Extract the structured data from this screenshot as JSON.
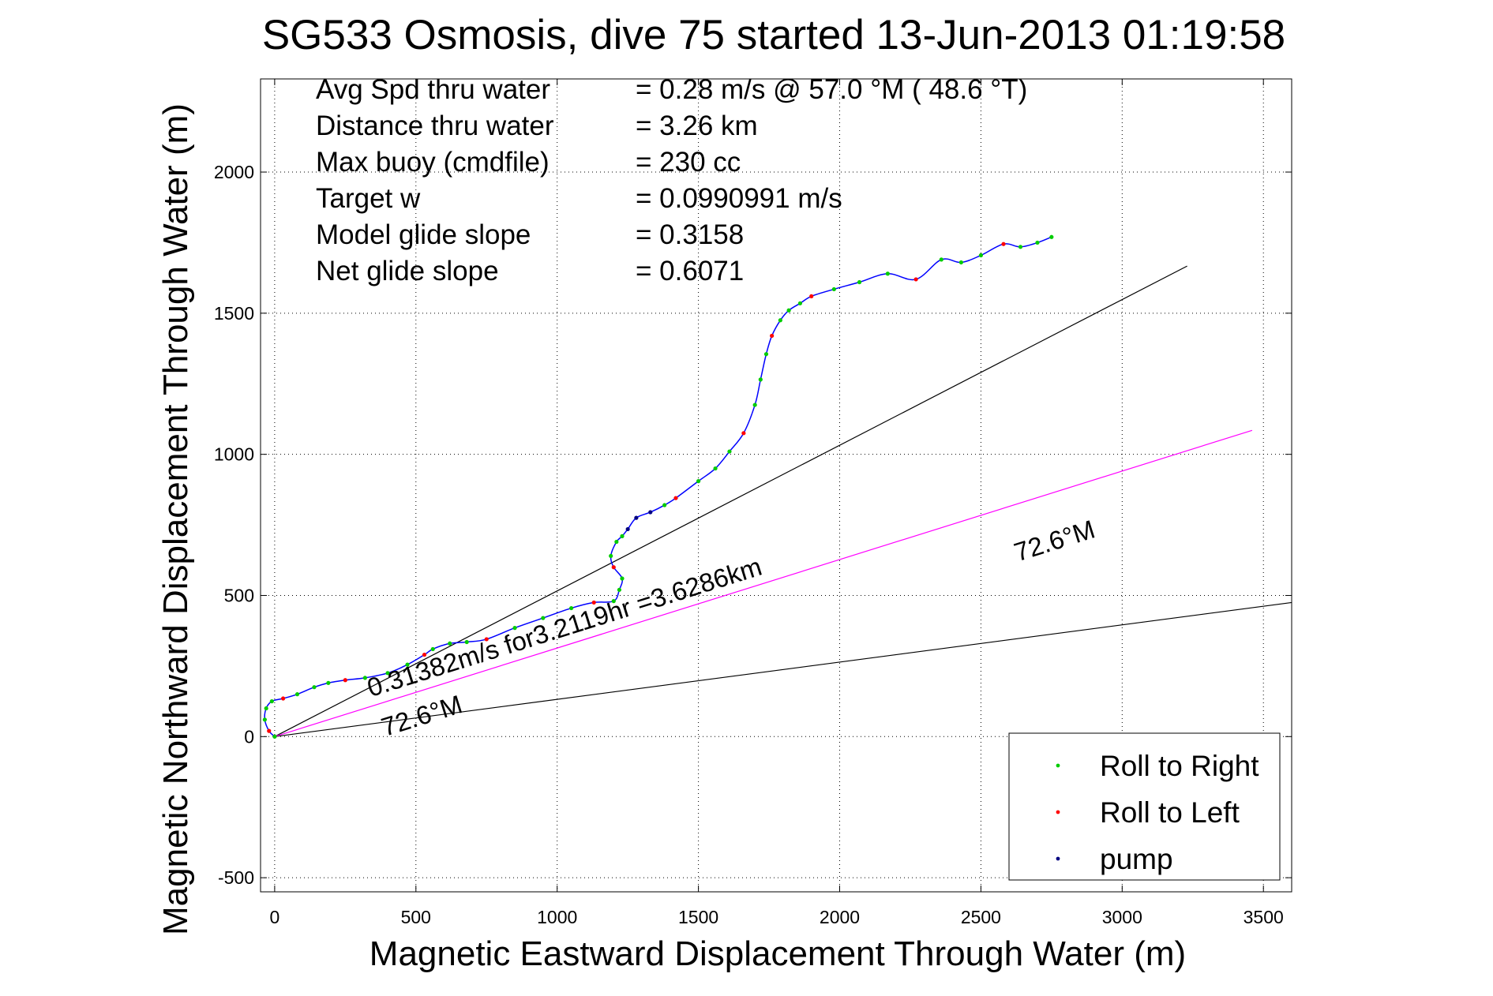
{
  "chart_data": {
    "type": "line",
    "title": "SG533 Osmosis, dive 75 started 13-Jun-2013 01:19:58",
    "xlabel": "Magnetic Eastward Displacement Through Water (m)",
    "ylabel": "Magnetic Northward Displacement Through Water (m)",
    "xlim": [
      -50,
      3600
    ],
    "ylim": [
      -550,
      2330
    ],
    "xticks": [
      0,
      500,
      1000,
      1500,
      2000,
      2500,
      3000,
      3500
    ],
    "yticks": [
      -500,
      0,
      500,
      1000,
      1500,
      2000
    ],
    "grid": true,
    "legend_position": "bottom-right",
    "info_lines": [
      {
        "label": "Avg Spd thru water",
        "value": "=  0.28 m/s @  57.0 °M ( 48.6 °T)"
      },
      {
        "label": "Distance thru water",
        "value": "=  3.26 km"
      },
      {
        "label": "Max buoy (cmdfile)",
        "value": "= 230 cc"
      },
      {
        "label": "Target w",
        "value": "= 0.0990991 m/s"
      },
      {
        "label": "Model glide slope",
        "value": "= 0.3158"
      },
      {
        "label": "Net glide slope",
        "value": "= 0.6071"
      }
    ],
    "annotations": [
      {
        "text": "0.31382m/s for3.2119hr =3.6286km",
        "x": 340,
        "y": 140,
        "angle_deg": 17.4
      },
      {
        "text": "72.6°M",
        "x": 390,
        "y": 0,
        "angle_deg": 17.4
      },
      {
        "text": "72.6°M",
        "x": 2630,
        "y": 620,
        "angle_deg": 17.4
      }
    ],
    "reference_lines": [
      {
        "name": "upper glide-slope bound",
        "color": "#000000",
        "x": [
          0,
          3230
        ],
        "y": [
          0,
          1667
        ]
      },
      {
        "name": "lower glide-slope bound",
        "color": "#000000",
        "x": [
          0,
          3600
        ],
        "y": [
          0,
          475
        ]
      },
      {
        "name": "72.6°M course",
        "color": "#ff00ff",
        "x": [
          0,
          3460
        ],
        "y": [
          0,
          1085
        ]
      }
    ],
    "track": {
      "name": "dive track",
      "color": "#0000ff",
      "x": [
        0,
        -20,
        -35,
        -30,
        -10,
        30,
        80,
        140,
        190,
        250,
        320,
        400,
        470,
        530,
        560,
        620,
        680,
        750,
        850,
        950,
        1050,
        1130,
        1200,
        1220,
        1230,
        1200,
        1190,
        1210,
        1230,
        1250,
        1280,
        1330,
        1380,
        1420,
        1500,
        1560,
        1610,
        1660,
        1700,
        1720,
        1740,
        1760,
        1790,
        1820,
        1860,
        1900,
        1980,
        2070,
        2170,
        2270,
        2360,
        2430,
        2500,
        2580,
        2640,
        2700,
        2750
      ],
      "y": [
        0,
        20,
        60,
        100,
        125,
        135,
        150,
        175,
        190,
        200,
        208,
        225,
        255,
        290,
        310,
        330,
        335,
        345,
        385,
        420,
        455,
        475,
        480,
        520,
        560,
        600,
        640,
        690,
        710,
        735,
        775,
        795,
        820,
        845,
        905,
        950,
        1010,
        1075,
        1175,
        1265,
        1355,
        1420,
        1475,
        1510,
        1535,
        1560,
        1585,
        1610,
        1640,
        1620,
        1690,
        1680,
        1705,
        1745,
        1735,
        1750,
        1770
      ]
    },
    "legend": [
      {
        "name": "Roll to Right",
        "color": "#00cc00"
      },
      {
        "name": "Roll to Left",
        "color": "#ff0000"
      },
      {
        "name": "pump",
        "color": "#000080"
      }
    ]
  }
}
